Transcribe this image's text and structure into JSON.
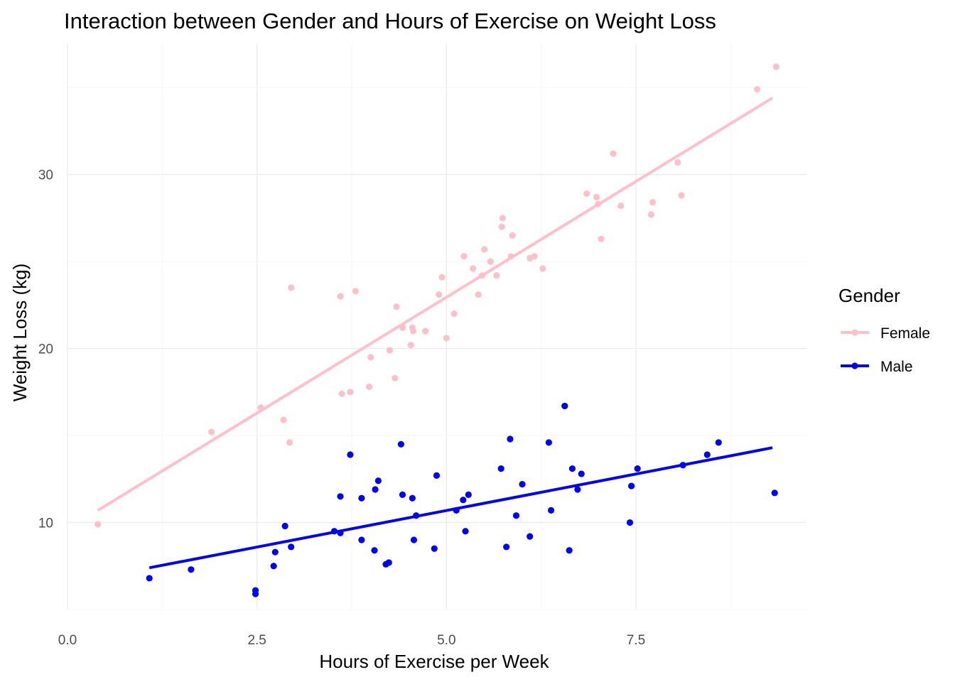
{
  "chart_data": {
    "type": "scatter",
    "title": "Interaction between Gender and Hours of Exercise on Weight Loss",
    "xlabel": "Hours of Exercise per Week",
    "ylabel": "Weight Loss (kg)",
    "xlim": [
      0,
      9.75
    ],
    "ylim": [
      5,
      37.5
    ],
    "x_ticks": [
      0,
      2.5,
      5,
      7.5
    ],
    "x_tick_labels": [
      "0.0",
      "2.5",
      "5.0",
      "7.5"
    ],
    "y_ticks": [
      10,
      20,
      30
    ],
    "y_tick_labels": [
      "10",
      "20",
      "30"
    ],
    "grid": true,
    "legend_title": "Gender",
    "legend_position": "right",
    "series": [
      {
        "name": "Female",
        "color": "#ffc0cb",
        "trend": [
          [
            0.4,
            10.7
          ],
          [
            9.3,
            34.4
          ]
        ],
        "points": [
          [
            0.4,
            9.9
          ],
          [
            1.9,
            15.2
          ],
          [
            2.55,
            16.6
          ],
          [
            2.85,
            15.9
          ],
          [
            2.93,
            14.6
          ],
          [
            2.95,
            23.5
          ],
          [
            3.6,
            23.0
          ],
          [
            3.62,
            17.4
          ],
          [
            3.73,
            17.5
          ],
          [
            3.8,
            23.3
          ],
          [
            3.98,
            17.8
          ],
          [
            4.0,
            19.5
          ],
          [
            4.25,
            19.9
          ],
          [
            4.32,
            18.3
          ],
          [
            4.34,
            22.4
          ],
          [
            4.42,
            21.2
          ],
          [
            4.53,
            20.2
          ],
          [
            4.55,
            21.2
          ],
          [
            4.56,
            21.0
          ],
          [
            4.72,
            21.0
          ],
          [
            4.9,
            23.1
          ],
          [
            4.94,
            24.1
          ],
          [
            5.0,
            20.6
          ],
          [
            5.1,
            22.0
          ],
          [
            5.23,
            25.3
          ],
          [
            5.35,
            24.6
          ],
          [
            5.42,
            23.1
          ],
          [
            5.47,
            24.2
          ],
          [
            5.5,
            25.7
          ],
          [
            5.58,
            25.0
          ],
          [
            5.66,
            24.2
          ],
          [
            5.73,
            27.0
          ],
          [
            5.74,
            27.5
          ],
          [
            5.85,
            25.3
          ],
          [
            5.87,
            26.5
          ],
          [
            6.1,
            25.2
          ],
          [
            6.16,
            25.3
          ],
          [
            6.27,
            24.6
          ],
          [
            6.85,
            28.9
          ],
          [
            6.98,
            28.7
          ],
          [
            7.0,
            28.3
          ],
          [
            7.04,
            26.3
          ],
          [
            7.2,
            31.2
          ],
          [
            7.3,
            28.2
          ],
          [
            7.7,
            27.7
          ],
          [
            7.72,
            28.4
          ],
          [
            8.05,
            30.7
          ],
          [
            8.1,
            28.8
          ],
          [
            9.1,
            34.9
          ],
          [
            9.35,
            36.2
          ]
        ]
      },
      {
        "name": "Male",
        "color": "#0000ff",
        "trend": [
          [
            1.08,
            7.4
          ],
          [
            9.3,
            14.3
          ]
        ],
        "points": [
          [
            1.08,
            6.8
          ],
          [
            1.63,
            7.3
          ],
          [
            2.48,
            6.1
          ],
          [
            2.48,
            5.9
          ],
          [
            2.72,
            7.5
          ],
          [
            2.74,
            8.3
          ],
          [
            2.87,
            9.8
          ],
          [
            2.95,
            8.6
          ],
          [
            3.52,
            9.5
          ],
          [
            3.6,
            9.4
          ],
          [
            3.6,
            11.5
          ],
          [
            3.73,
            13.9
          ],
          [
            3.88,
            11.4
          ],
          [
            3.88,
            9.0
          ],
          [
            4.05,
            8.4
          ],
          [
            4.06,
            11.9
          ],
          [
            4.1,
            12.4
          ],
          [
            4.2,
            7.6
          ],
          [
            4.24,
            7.7
          ],
          [
            4.4,
            14.5
          ],
          [
            4.42,
            11.6
          ],
          [
            4.55,
            11.4
          ],
          [
            4.57,
            9.0
          ],
          [
            4.6,
            10.4
          ],
          [
            4.84,
            8.5
          ],
          [
            4.87,
            12.7
          ],
          [
            5.13,
            10.7
          ],
          [
            5.22,
            11.3
          ],
          [
            5.25,
            9.5
          ],
          [
            5.29,
            11.6
          ],
          [
            5.72,
            13.1
          ],
          [
            5.79,
            8.6
          ],
          [
            5.84,
            14.8
          ],
          [
            5.92,
            10.4
          ],
          [
            6.0,
            12.2
          ],
          [
            6.1,
            9.2
          ],
          [
            6.35,
            14.6
          ],
          [
            6.38,
            10.7
          ],
          [
            6.56,
            16.7
          ],
          [
            6.62,
            8.4
          ],
          [
            6.66,
            13.1
          ],
          [
            6.73,
            11.9
          ],
          [
            6.78,
            12.8
          ],
          [
            7.42,
            10.0
          ],
          [
            7.44,
            12.1
          ],
          [
            7.52,
            13.1
          ],
          [
            8.12,
            13.3
          ],
          [
            8.44,
            13.9
          ],
          [
            8.59,
            14.6
          ],
          [
            9.33,
            11.7
          ]
        ]
      }
    ]
  }
}
